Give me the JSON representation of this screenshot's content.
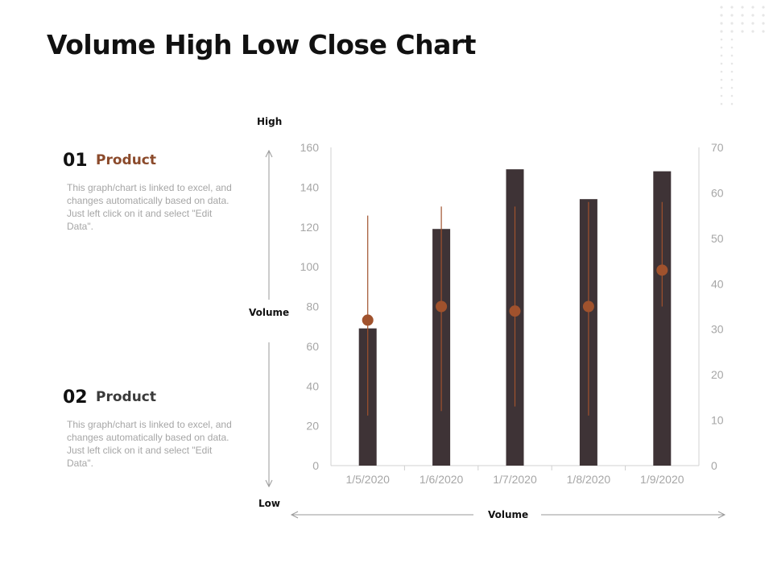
{
  "page": {
    "title": "Volume High Low Close Chart",
    "accent_color": "#a0522d",
    "bar_color": "#3e3336"
  },
  "items": [
    {
      "number": "01",
      "heading": "Product",
      "heading_color": "#8b4a2b",
      "description": "This graph/chart is linked to excel, and changes automatically based on data. Just left click on it and select \"Edit Data\"."
    },
    {
      "number": "02",
      "heading": "Product",
      "heading_color": "#3a3a3a",
      "description": "This graph/chart is linked to excel, and changes automatically based on data. Just left click on it and select \"Edit Data\"."
    }
  ],
  "axis_labels": {
    "high": "High",
    "volume_vertical": "Volume",
    "low": "Low",
    "volume_horizontal": "Volume"
  },
  "chart_data": {
    "type": "bar",
    "categories": [
      "1/5/2020",
      "1/6/2020",
      "1/7/2020",
      "1/8/2020",
      "1/9/2020"
    ],
    "series": [
      {
        "values": [
          69,
          119,
          149,
          134,
          148
        ],
        "axis": "left"
      },
      {
        "values": [
          32,
          35,
          34,
          35,
          43
        ],
        "axis": "right"
      }
    ],
    "high": [
      55,
      57,
      57,
      58,
      58
    ],
    "low": [
      11,
      12,
      13,
      11,
      35
    ],
    "y_left": {
      "min": 0,
      "max": 160,
      "ticks": [
        0,
        20,
        40,
        60,
        80,
        100,
        120,
        140,
        160
      ]
    },
    "y_right": {
      "min": 0,
      "max": 70,
      "ticks": [
        0,
        10,
        20,
        30,
        40,
        50,
        60,
        70
      ]
    },
    "grid": false
  }
}
